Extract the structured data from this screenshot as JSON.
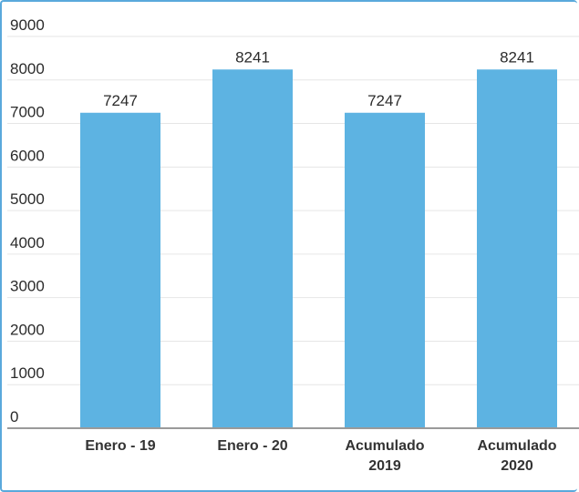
{
  "chart_data": {
    "type": "bar",
    "categories": [
      [
        "Enero - 19"
      ],
      [
        "Enero - 20"
      ],
      [
        "Acumulado",
        "2019"
      ],
      [
        "Acumulado",
        "2020"
      ]
    ],
    "values": [
      7247,
      8241,
      7247,
      8241
    ],
    "data_labels": [
      "7247",
      "8241",
      "7247",
      "8241"
    ],
    "ylim": [
      0,
      9000
    ],
    "yticks": [
      "0",
      "1000",
      "2000",
      "3000",
      "4000",
      "5000",
      "6000",
      "7000",
      "8000",
      "9000"
    ],
    "grid": true,
    "colors": {
      "bar": "#5db3e2",
      "grid": "#e6e6e6",
      "axis": "#9a9a9a",
      "frame": "#5aa9dc"
    }
  }
}
